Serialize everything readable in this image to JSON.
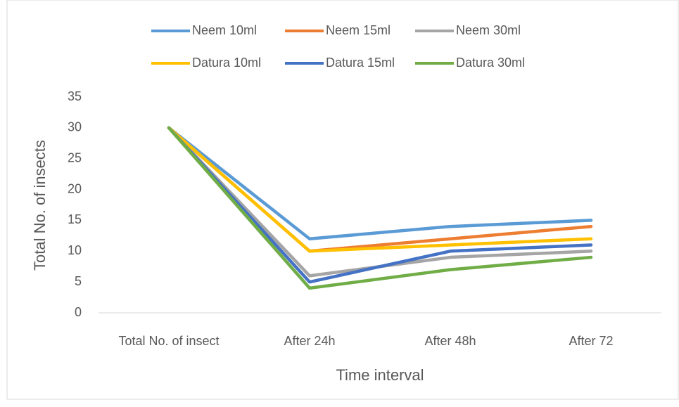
{
  "chart_data": {
    "type": "line",
    "categories": [
      "Total No. of insect",
      "After 24h",
      "After 48h",
      "After 72"
    ],
    "x_label": "Time interval",
    "y_label": "Total No. of insects",
    "ylim": [
      0,
      35
    ],
    "yticks": [
      0,
      5,
      10,
      15,
      20,
      25,
      30,
      35
    ],
    "legend": "top",
    "series": [
      {
        "name": "Neem 10ml",
        "color": "#5b9bd5",
        "values": [
          30,
          12,
          14,
          15
        ]
      },
      {
        "name": "Neem 15ml",
        "color": "#ed7d31",
        "values": [
          30,
          10,
          12,
          14
        ]
      },
      {
        "name": "Neem 30ml",
        "color": "#a5a5a5",
        "values": [
          30,
          6,
          9,
          10
        ]
      },
      {
        "name": "Datura 10ml",
        "color": "#ffc000",
        "values": [
          30,
          10,
          11,
          12
        ]
      },
      {
        "name": "Datura 15ml",
        "color": "#4472c4",
        "values": [
          30,
          5,
          10,
          11
        ]
      },
      {
        "name": "Datura 30ml",
        "color": "#70ad47",
        "values": [
          30,
          4,
          7,
          9
        ]
      }
    ]
  }
}
